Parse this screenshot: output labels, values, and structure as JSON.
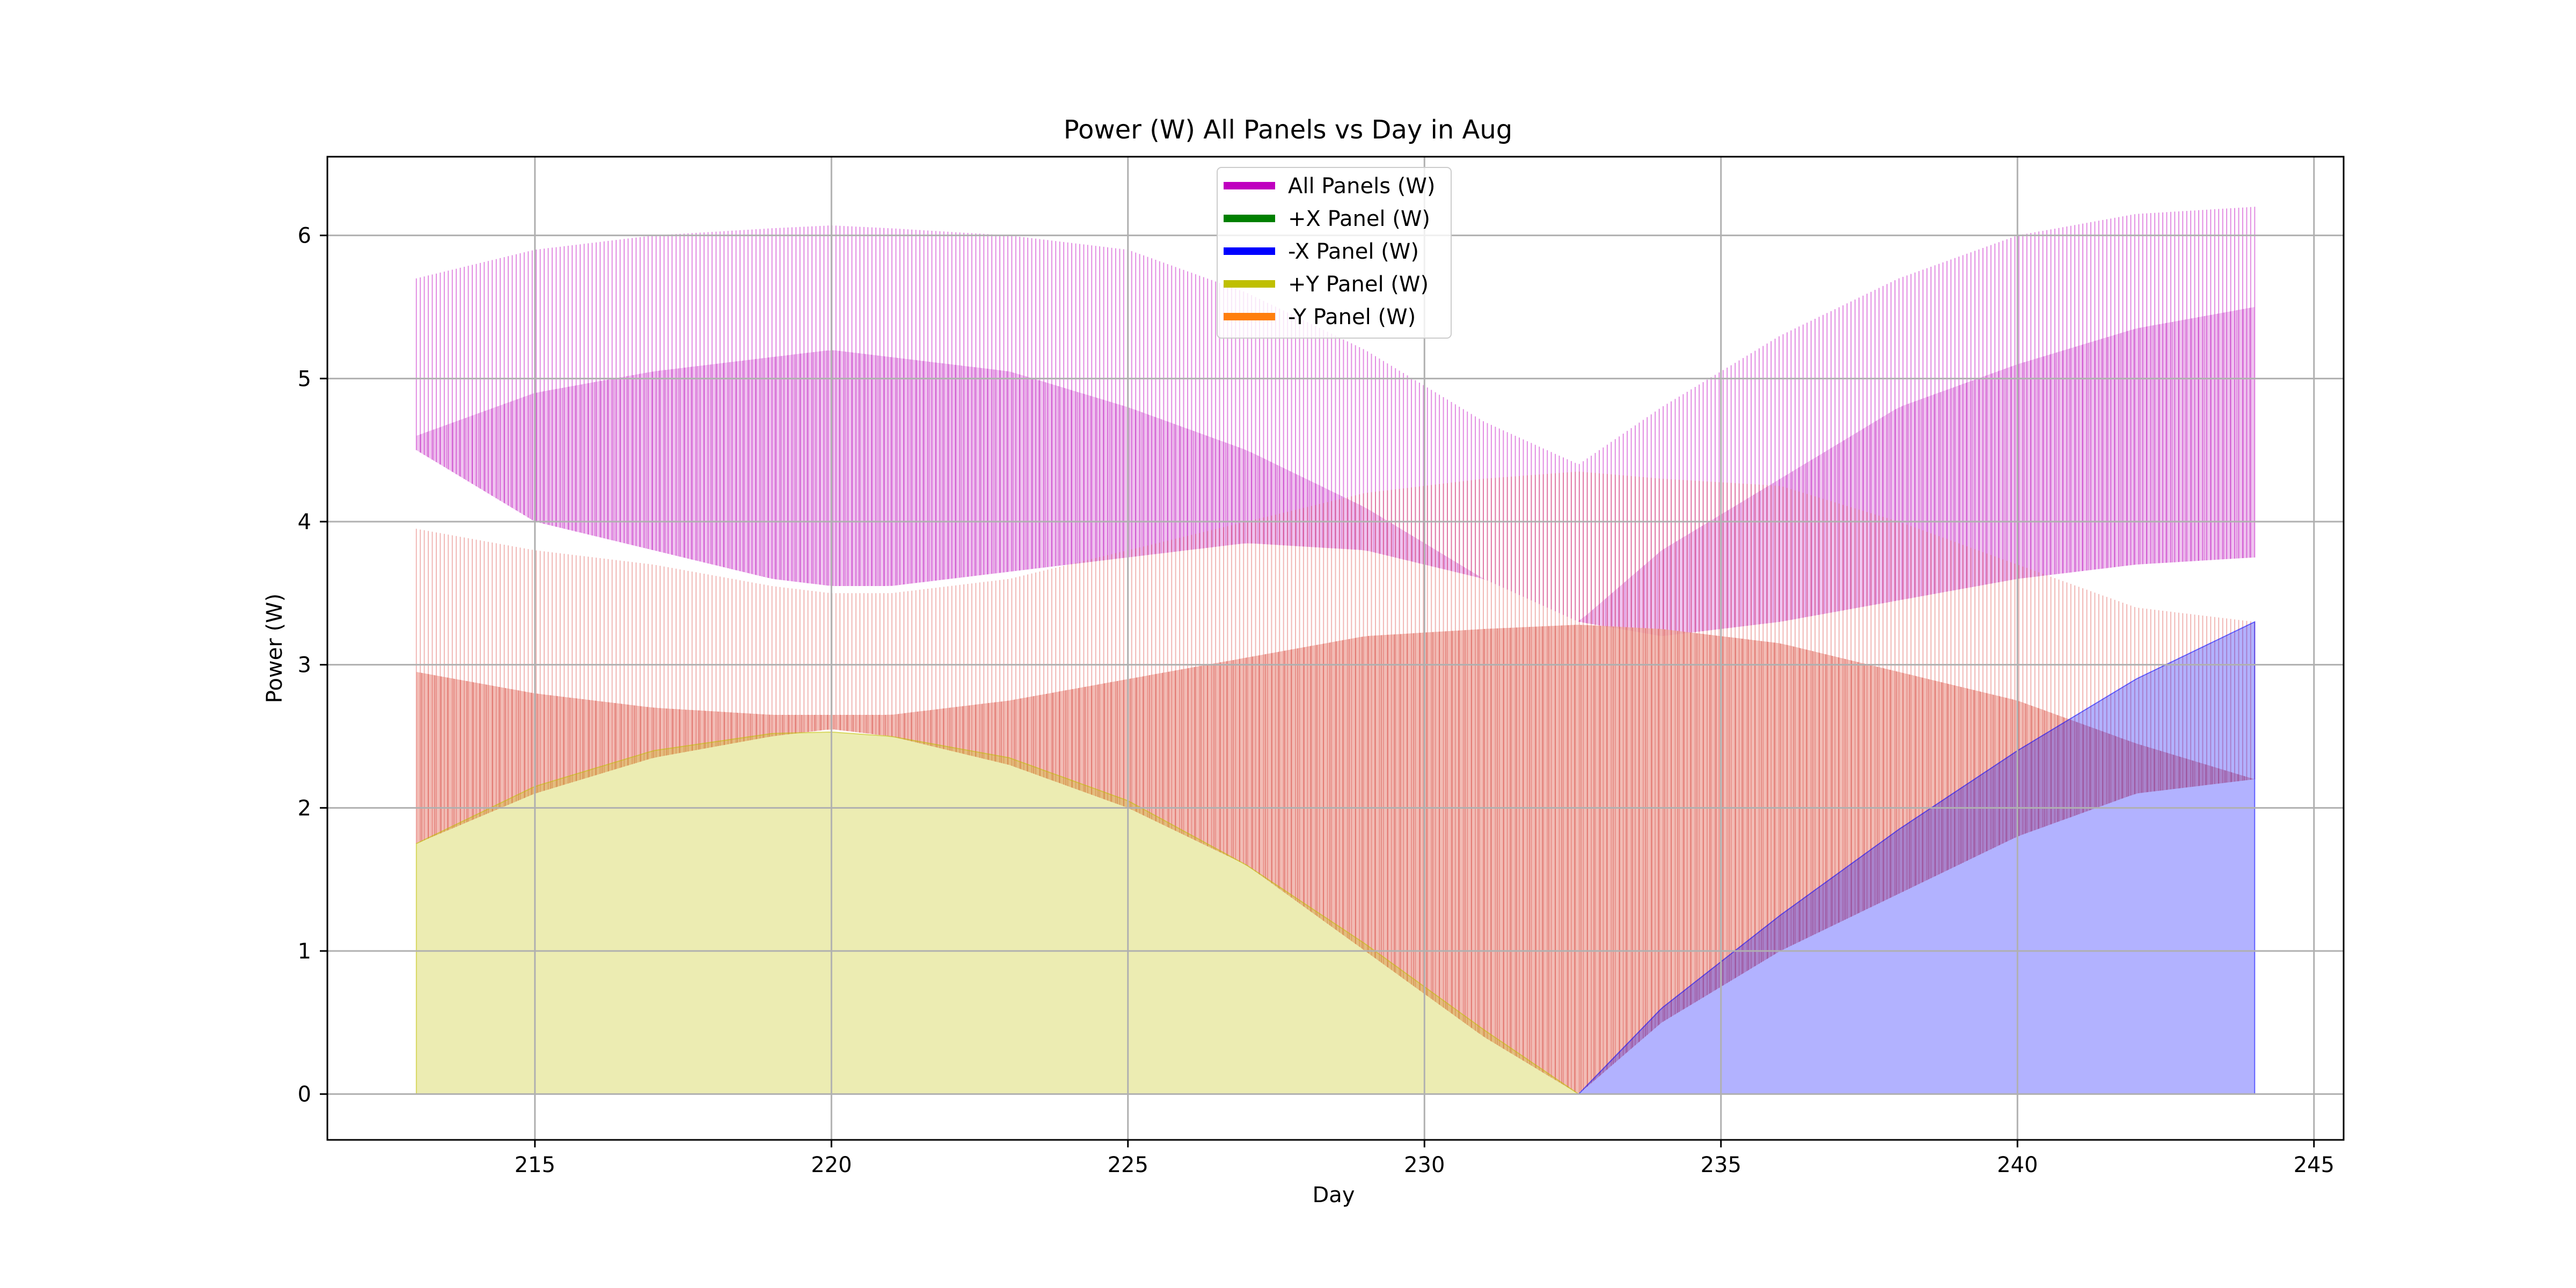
{
  "chart_data": {
    "type": "area",
    "title": "Power (W) All Panels vs Day in Aug",
    "xlabel": "Day",
    "ylabel": "Power (W)",
    "xlim": [
      211.5,
      245.5
    ],
    "ylim": [
      -0.32,
      6.55
    ],
    "xticks": [
      215,
      220,
      225,
      230,
      235,
      240,
      245
    ],
    "yticks": [
      0,
      1,
      2,
      3,
      4,
      5,
      6
    ],
    "grid": true,
    "legend_position": "top-center",
    "colors": {
      "all_panels": "#bf00bf",
      "plus_x": "#008000",
      "minus_x": "#0000ff",
      "plus_y": "#bfbf00",
      "minus_y": "#ff7f0e"
    },
    "legend": [
      "All Panels (W)",
      "+X Panel (W)",
      "-X Panel (W)",
      "+Y Panel (W)",
      "-Y Panel (W)"
    ],
    "series": [
      {
        "name": "All Panels (W)",
        "description": "oscillating band, upper envelope",
        "x": [
          213,
          215,
          217,
          219,
          220,
          221,
          223,
          225,
          227,
          229,
          231,
          232.6,
          234,
          236,
          238,
          240,
          242,
          244
        ],
        "peak": [
          5.7,
          5.9,
          6.0,
          6.05,
          6.07,
          6.05,
          6.0,
          5.9,
          5.6,
          5.2,
          4.7,
          4.4,
          4.8,
          5.3,
          5.7,
          6.0,
          6.15,
          6.2
        ],
        "base": [
          4.6,
          4.9,
          5.05,
          5.15,
          5.2,
          5.15,
          5.05,
          4.8,
          4.5,
          4.1,
          3.6,
          3.3,
          3.8,
          4.3,
          4.8,
          5.1,
          5.35,
          5.5
        ],
        "trough": [
          4.5,
          4.0,
          3.8,
          3.6,
          3.55,
          3.55,
          3.65,
          3.75,
          3.85,
          3.8,
          3.6,
          3.3,
          3.2,
          3.3,
          3.45,
          3.6,
          3.7,
          3.75
        ]
      },
      {
        "name": "-Y Panel (W)",
        "description": "oscillating band",
        "x": [
          213,
          215,
          217,
          219,
          220,
          221,
          223,
          225,
          227,
          229,
          231,
          232.6,
          234,
          236,
          238,
          240,
          242,
          244
        ],
        "peak": [
          3.95,
          3.8,
          3.7,
          3.55,
          3.5,
          3.5,
          3.6,
          3.8,
          4.0,
          4.2,
          4.3,
          4.35,
          4.3,
          4.25,
          4.0,
          3.7,
          3.4,
          3.3
        ],
        "base": [
          2.95,
          2.8,
          2.7,
          2.65,
          2.65,
          2.65,
          2.75,
          2.9,
          3.05,
          3.2,
          3.25,
          3.28,
          3.25,
          3.15,
          2.95,
          2.75,
          2.45,
          2.2
        ],
        "trough": [
          1.75,
          2.1,
          2.35,
          2.5,
          2.55,
          2.5,
          2.3,
          2.0,
          1.6,
          1.0,
          0.4,
          0.0,
          0.5,
          1.0,
          1.4,
          1.8,
          2.1,
          2.2
        ]
      },
      {
        "name": "+Y Panel (W)",
        "description": "smooth filled envelope",
        "x": [
          213,
          215,
          217,
          219,
          220,
          221,
          223,
          225,
          227,
          229,
          231,
          232.6
        ],
        "values": [
          1.75,
          2.15,
          2.4,
          2.52,
          2.53,
          2.5,
          2.35,
          2.05,
          1.6,
          1.05,
          0.45,
          0.0
        ]
      },
      {
        "name": "-X Panel (W)",
        "description": "smooth filled envelope",
        "x": [
          232.6,
          234,
          236,
          238,
          240,
          242,
          244
        ],
        "values": [
          0.0,
          0.6,
          1.25,
          1.85,
          2.4,
          2.9,
          3.3
        ]
      },
      {
        "name": "+X Panel (W)",
        "description": "not visible / zero",
        "x": [
          213,
          244
        ],
        "values": [
          0,
          0
        ]
      }
    ]
  }
}
